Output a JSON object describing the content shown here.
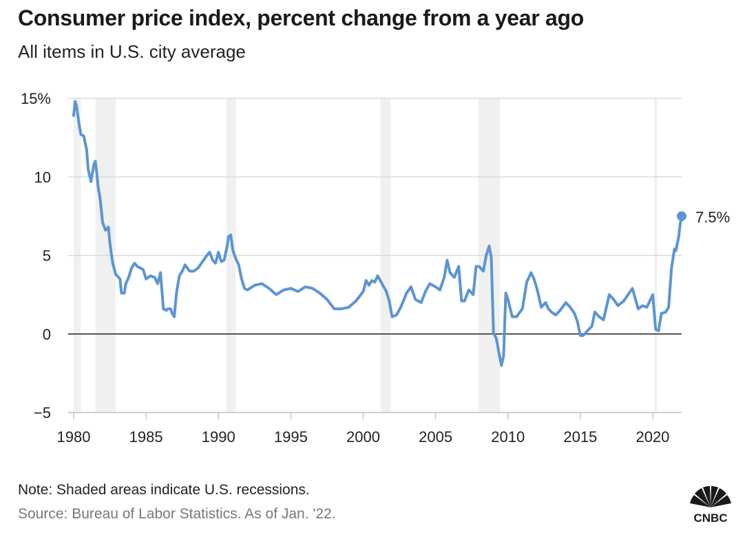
{
  "header": {
    "title": "Consumer price index, percent change from a year ago",
    "subtitle": "All items in U.S. city average"
  },
  "footer": {
    "note": "Note: Shaded areas indicate U.S. recessions.",
    "source": "Source: Bureau of Labor Statistics. As of Jan. '22."
  },
  "brand": {
    "name": "CNBC",
    "icon": "cnbc-peacock-icon"
  },
  "colors": {
    "line": "#5b95d3",
    "recession": "#f0f0f0",
    "grid": "#d6d6d6",
    "zero_line": "#222222"
  },
  "chart_data": {
    "type": "line",
    "title": "Consumer price index, percent change from a year ago",
    "subtitle": "All items in U.S. city average",
    "xlabel": "",
    "ylabel": "",
    "xlim": [
      1980,
      2022
    ],
    "ylim": [
      -5,
      15
    ],
    "x_ticks": [
      {
        "value": 1980,
        "label": "1980"
      },
      {
        "value": 1985,
        "label": "1985"
      },
      {
        "value": 1990,
        "label": "1990"
      },
      {
        "value": 1995,
        "label": "1995"
      },
      {
        "value": 2000,
        "label": "2000"
      },
      {
        "value": 2005,
        "label": "2005"
      },
      {
        "value": 2010,
        "label": "2010"
      },
      {
        "value": 2015,
        "label": "2015"
      },
      {
        "value": 2020,
        "label": "2020"
      }
    ],
    "y_ticks": [
      {
        "value": 15,
        "label": "15%"
      },
      {
        "value": 10,
        "label": "10"
      },
      {
        "value": 5,
        "label": "5"
      },
      {
        "value": 0,
        "label": "0"
      },
      {
        "value": -5,
        "label": "−5"
      }
    ],
    "grid": true,
    "recessions": [
      {
        "start": 1980.0,
        "end": 1980.5
      },
      {
        "start": 1981.5,
        "end": 1982.9
      },
      {
        "start": 1990.55,
        "end": 1991.2
      },
      {
        "start": 2001.2,
        "end": 2001.9
      },
      {
        "start": 2007.95,
        "end": 2009.45
      },
      {
        "start": 2020.1,
        "end": 2020.3
      }
    ],
    "series": [
      {
        "end_label": "7.5%",
        "x": [
          1980.0,
          1980.1,
          1980.2,
          1980.4,
          1980.5,
          1980.7,
          1980.9,
          1981.0,
          1981.2,
          1981.4,
          1981.5,
          1981.6,
          1981.7,
          1981.8,
          1981.9,
          1982.0,
          1982.2,
          1982.4,
          1982.5,
          1982.6,
          1982.7,
          1982.9,
          1983.0,
          1983.2,
          1983.3,
          1983.5,
          1983.6,
          1983.8,
          1984.0,
          1984.2,
          1984.4,
          1984.6,
          1984.8,
          1985.0,
          1985.3,
          1985.6,
          1985.8,
          1986.0,
          1986.2,
          1986.4,
          1986.5,
          1986.7,
          1986.8,
          1986.95,
          1987.1,
          1987.3,
          1987.5,
          1987.7,
          1988.0,
          1988.3,
          1988.6,
          1988.9,
          1989.2,
          1989.4,
          1989.6,
          1989.8,
          1990.0,
          1990.2,
          1990.4,
          1990.6,
          1990.7,
          1990.85,
          1991.0,
          1991.2,
          1991.4,
          1991.6,
          1991.8,
          1992.0,
          1992.5,
          1993.0,
          1993.5,
          1994.0,
          1994.5,
          1995.0,
          1995.5,
          1996.0,
          1996.5,
          1997.0,
          1997.5,
          1998.0,
          1998.5,
          1999.0,
          1999.5,
          2000.0,
          2000.2,
          2000.4,
          2000.6,
          2000.8,
          2001.0,
          2001.3,
          2001.6,
          2001.8,
          2002.0,
          2002.3,
          2002.6,
          2003.0,
          2003.3,
          2003.6,
          2004.0,
          2004.3,
          2004.6,
          2005.0,
          2005.3,
          2005.6,
          2005.8,
          2006.0,
          2006.3,
          2006.6,
          2006.8,
          2007.0,
          2007.3,
          2007.6,
          2007.8,
          2008.0,
          2008.3,
          2008.5,
          2008.7,
          2008.85,
          2009.0,
          2009.2,
          2009.4,
          2009.55,
          2009.7,
          2009.85,
          2010.0,
          2010.3,
          2010.6,
          2011.0,
          2011.3,
          2011.6,
          2011.8,
          2012.0,
          2012.3,
          2012.6,
          2012.8,
          2013.0,
          2013.3,
          2013.6,
          2014.0,
          2014.3,
          2014.6,
          2014.8,
          2015.0,
          2015.2,
          2015.5,
          2015.8,
          2016.0,
          2016.3,
          2016.6,
          2017.0,
          2017.3,
          2017.6,
          2018.0,
          2018.3,
          2018.6,
          2019.0,
          2019.3,
          2019.6,
          2020.0,
          2020.2,
          2020.4,
          2020.6,
          2020.9,
          2021.1,
          2021.3,
          2021.5,
          2021.6,
          2021.8,
          2021.9,
          2022.0
        ],
        "values": [
          13.9,
          14.8,
          14.5,
          13.2,
          12.7,
          12.6,
          11.7,
          10.5,
          9.7,
          10.8,
          11.0,
          10.2,
          9.3,
          8.8,
          8.0,
          7.1,
          6.6,
          6.8,
          5.8,
          5.1,
          4.5,
          3.8,
          3.7,
          3.5,
          2.6,
          2.6,
          3.2,
          3.6,
          4.2,
          4.5,
          4.3,
          4.2,
          4.1,
          3.5,
          3.7,
          3.6,
          3.2,
          3.9,
          1.6,
          1.5,
          1.6,
          1.6,
          1.3,
          1.1,
          2.6,
          3.7,
          4.0,
          4.4,
          4.0,
          4.0,
          4.2,
          4.6,
          5.0,
          5.2,
          4.7,
          4.5,
          5.2,
          4.6,
          4.7,
          5.6,
          6.2,
          6.3,
          5.3,
          4.8,
          4.4,
          3.5,
          2.9,
          2.8,
          3.1,
          3.2,
          2.9,
          2.5,
          2.8,
          2.9,
          2.7,
          3.0,
          2.9,
          2.6,
          2.2,
          1.6,
          1.6,
          1.7,
          2.1,
          2.7,
          3.4,
          3.1,
          3.4,
          3.3,
          3.7,
          3.2,
          2.7,
          2.1,
          1.1,
          1.2,
          1.7,
          2.6,
          3.0,
          2.2,
          2.0,
          2.7,
          3.2,
          3.0,
          2.8,
          3.6,
          4.7,
          3.9,
          3.6,
          4.3,
          2.1,
          2.1,
          2.8,
          2.5,
          4.3,
          4.3,
          4.0,
          5.0,
          5.6,
          4.9,
          0.1,
          -0.3,
          -1.3,
          -2.0,
          -1.4,
          2.6,
          2.2,
          1.1,
          1.1,
          1.6,
          3.3,
          3.9,
          3.5,
          2.9,
          1.7,
          2.0,
          1.6,
          1.4,
          1.2,
          1.5,
          2.0,
          1.7,
          1.3,
          0.8,
          -0.1,
          -0.1,
          0.2,
          0.5,
          1.4,
          1.1,
          0.9,
          2.5,
          2.2,
          1.8,
          2.1,
          2.5,
          2.9,
          1.6,
          1.8,
          1.7,
          2.5,
          0.3,
          0.2,
          1.3,
          1.4,
          1.7,
          4.2,
          5.4,
          5.3,
          6.2,
          7.0,
          7.5
        ]
      }
    ]
  }
}
